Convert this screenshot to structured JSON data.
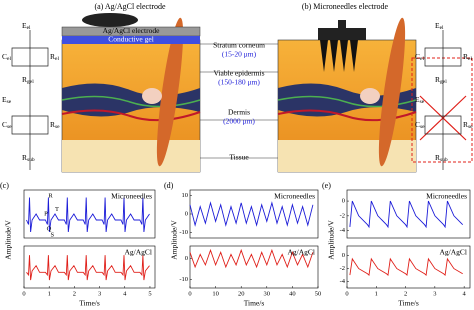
{
  "diagram": {
    "panel_a": "(a) Ag/AgCl electrode",
    "panel_b": "(b) Microneedles electrode",
    "electrode": "Ag/AgCl electrode",
    "gel": "Conductive gel",
    "layers": [
      {
        "name": "Stratum corneum",
        "size": "(15-20 μm)"
      },
      {
        "name": "Viable epidermis",
        "size": "(150-180 μm)"
      },
      {
        "name": "Dermis",
        "size": "(2000 μm)"
      },
      {
        "name": "Tissue"
      }
    ],
    "circuit_left": [
      {
        "symbol": "E",
        "sub": "el"
      },
      {
        "symbol": "C",
        "sub": "el"
      },
      {
        "symbol": "R",
        "sub": "el"
      },
      {
        "symbol": "R",
        "sub": "gel"
      },
      {
        "symbol": "E",
        "sub": "se"
      },
      {
        "symbol": "C",
        "sub": "se"
      },
      {
        "symbol": "R",
        "sub": "se"
      },
      {
        "symbol": "R",
        "sub": "sub"
      }
    ],
    "circuit_right": [
      {
        "symbol": "E",
        "sub": "el"
      },
      {
        "symbol": "C",
        "sub": "el"
      },
      {
        "symbol": "R",
        "sub": "el"
      },
      {
        "symbol": "R",
        "sub": "gel"
      },
      {
        "symbol": "E",
        "sub": "se"
      },
      {
        "symbol": "C",
        "sub": "se"
      },
      {
        "symbol": "R",
        "sub": "se"
      },
      {
        "symbol": "R",
        "sub": "sub"
      }
    ],
    "panel_labels": [
      "(c)",
      "(d)",
      "(e)"
    ]
  },
  "chart_data": [
    {
      "type": "line",
      "title": "Microneedles",
      "ylabel": "Amplitude/V",
      "color": "#1c1cd8",
      "xlim": [
        0,
        5.2
      ],
      "ylim": [
        -1.2,
        2
      ],
      "annotations": [
        "R",
        "T",
        "P",
        "Q",
        "S"
      ],
      "x": [
        0.1,
        0.18,
        0.22,
        0.26,
        0.32,
        0.48,
        0.62,
        0.85,
        0.93,
        0.97,
        1.01,
        1.07,
        1.23,
        1.37,
        1.6,
        1.68,
        1.72,
        1.76,
        1.82,
        1.98,
        2.12,
        2.35,
        2.43,
        2.47,
        2.51,
        2.57,
        2.73,
        2.87,
        3.1,
        3.18,
        3.22,
        3.26,
        3.32,
        3.48,
        3.62,
        3.85,
        3.93,
        3.97,
        4.01,
        4.07,
        4.23,
        4.37,
        4.6,
        4.68,
        4.72,
        4.76,
        4.82,
        4.98
      ],
      "values": [
        0,
        -0.3,
        1.5,
        -0.8,
        0,
        0.4,
        0,
        0,
        -0.3,
        1.5,
        -0.8,
        0,
        0.4,
        0,
        0,
        -0.3,
        1.5,
        -0.8,
        0,
        0.4,
        0,
        0,
        -0.3,
        1.5,
        -0.8,
        0,
        0.4,
        0,
        0,
        -0.3,
        1.5,
        -0.8,
        0,
        0.4,
        0,
        0,
        -0.3,
        1.5,
        -0.8,
        0,
        0.4,
        0,
        0,
        -0.3,
        1.5,
        -0.8,
        0,
        0.4
      ]
    },
    {
      "type": "line",
      "title": "Ag/AgCl",
      "xlabel": "Time/s",
      "color": "#e0201a",
      "xlim": [
        0,
        5.2
      ],
      "ylim": [
        -1.2,
        2
      ],
      "xticks": [
        0,
        1,
        2,
        3,
        4,
        5
      ],
      "x": [
        0.1,
        0.18,
        0.22,
        0.26,
        0.32,
        0.48,
        0.62,
        0.85,
        0.93,
        0.97,
        1.01,
        1.07,
        1.23,
        1.37,
        1.6,
        1.68,
        1.72,
        1.76,
        1.82,
        1.98,
        2.12,
        2.35,
        2.43,
        2.47,
        2.51,
        2.57,
        2.73,
        2.87,
        3.1,
        3.18,
        3.22,
        3.26,
        3.32,
        3.48,
        3.62,
        3.85,
        3.93,
        3.97,
        4.01,
        4.07,
        4.23,
        4.37,
        4.6,
        4.68,
        4.72,
        4.76,
        4.82,
        4.98
      ],
      "values": [
        0,
        -0.2,
        1.3,
        -0.6,
        0.1,
        0.5,
        0,
        0,
        -0.2,
        1.3,
        -0.6,
        0.1,
        0.5,
        0,
        0,
        -0.2,
        1.3,
        -0.6,
        0.1,
        0.5,
        0,
        0,
        -0.2,
        1.3,
        -0.6,
        0.1,
        0.5,
        0,
        0,
        -0.2,
        1.3,
        -0.6,
        0.1,
        0.5,
        0,
        0,
        -0.2,
        1.3,
        -0.6,
        0.1,
        0.5,
        0,
        0,
        -0.2,
        1.3,
        -0.6,
        0.1,
        0.5
      ]
    },
    {
      "type": "line",
      "title": "Microneedles",
      "ylabel": "Amplitude/V",
      "color": "#1c1cd8",
      "xlim": [
        0,
        50
      ],
      "ylim": [
        -13,
        13
      ],
      "yticks": [
        10,
        0,
        -10
      ],
      "x": [
        0,
        2,
        4,
        6,
        8,
        10,
        12,
        14,
        16,
        18,
        20,
        22,
        24,
        26,
        28,
        30,
        32,
        34,
        36,
        38,
        40,
        42,
        44,
        46,
        48
      ],
      "values": [
        5,
        -6,
        4,
        -5,
        6,
        -4,
        5,
        -6,
        4,
        -5,
        6,
        -5,
        4,
        -6,
        5,
        -4,
        6,
        -5,
        4,
        -6,
        5,
        -5,
        4,
        -6,
        5
      ]
    },
    {
      "type": "line",
      "title": "Ag/AgCl",
      "xlabel": "Time/s",
      "color": "#e0201a",
      "xlim": [
        0,
        50
      ],
      "ylim": [
        -14,
        6
      ],
      "yticks": [
        0,
        -10
      ],
      "xticks": [
        0,
        10,
        20,
        30,
        40,
        50
      ],
      "x": [
        0,
        2,
        4,
        6,
        8,
        10,
        12,
        14,
        16,
        18,
        20,
        22,
        24,
        26,
        28,
        30,
        32,
        34,
        36,
        38,
        40,
        42,
        44,
        46,
        48
      ],
      "values": [
        3,
        -4,
        2,
        -3,
        4,
        -3,
        3,
        -4,
        2,
        -3,
        4,
        -3,
        2,
        -4,
        3,
        -3,
        4,
        -3,
        2,
        -4,
        3,
        -3,
        2,
        -4,
        3
      ]
    },
    {
      "type": "line",
      "title": "Microneedles",
      "ylabel": "Amplitude/V",
      "color": "#1c1cd8",
      "xlim": [
        0,
        4.2
      ],
      "ylim": [
        -5,
        1.5
      ],
      "yticks": [
        0,
        -2,
        -4
      ],
      "x": [
        0.1,
        0.18,
        0.4,
        0.7,
        0.75,
        0.83,
        1.05,
        1.35,
        1.4,
        1.48,
        1.7,
        2.0,
        2.05,
        2.13,
        2.35,
        2.65,
        2.7,
        2.78,
        3.0,
        3.3,
        3.35,
        3.43,
        3.65,
        3.95
      ],
      "values": [
        -3.5,
        0,
        -2,
        -3.2,
        -3.5,
        0,
        -2,
        -3.2,
        -3.5,
        0,
        -2,
        -3.2,
        -3.5,
        0,
        -2,
        -3.2,
        -3.5,
        0,
        -2,
        -3.2,
        -3.5,
        0,
        -2,
        -3.2
      ]
    },
    {
      "type": "line",
      "title": "Ag/AgCl",
      "xlabel": "Time/s",
      "color": "#e0201a",
      "xlim": [
        0,
        4.2
      ],
      "ylim": [
        -5,
        1.5
      ],
      "yticks": [
        0,
        -2,
        -4
      ],
      "xticks": [
        0,
        1,
        2,
        3,
        4
      ],
      "x": [
        0.1,
        0.18,
        0.4,
        0.7,
        0.75,
        0.83,
        1.05,
        1.35,
        1.4,
        1.48,
        1.7,
        2.0,
        2.05,
        2.13,
        2.35,
        2.65,
        2.7,
        2.78,
        3.0,
        3.3,
        3.35,
        3.43,
        3.65,
        3.95
      ],
      "values": [
        -3,
        -0.5,
        -2,
        -2.8,
        -3,
        -0.5,
        -2,
        -2.8,
        -3,
        -0.5,
        -2,
        -2.8,
        -3,
        -0.5,
        -2,
        -2.8,
        -3,
        -0.5,
        -2,
        -2.8,
        -3,
        -0.5,
        -2,
        -2.8
      ]
    }
  ]
}
